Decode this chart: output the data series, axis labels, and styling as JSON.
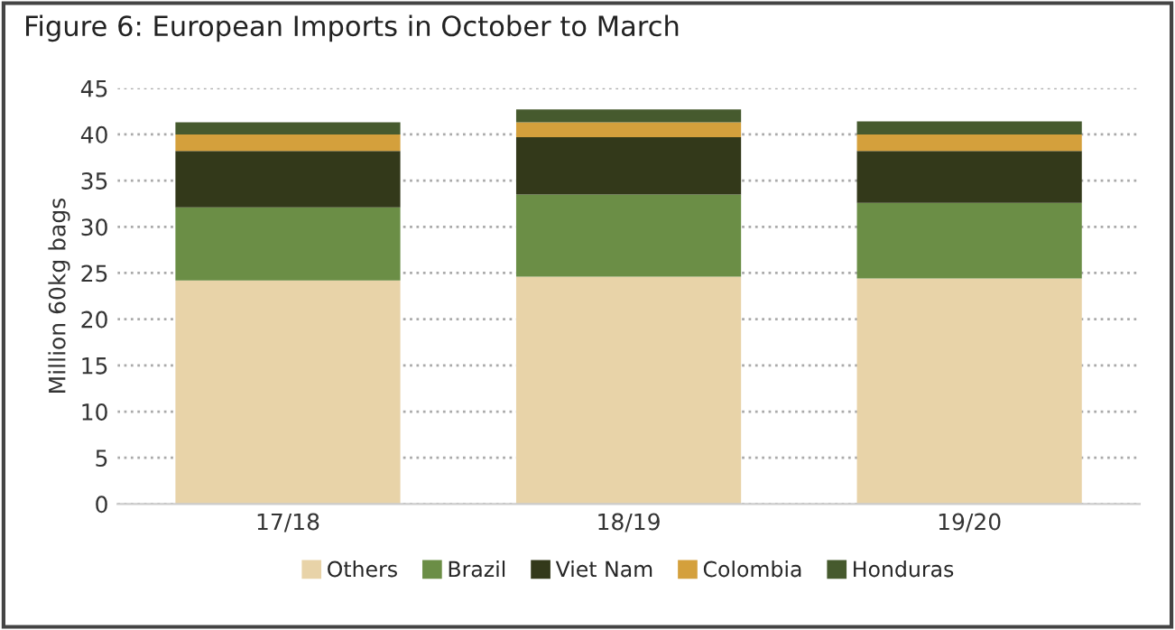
{
  "chart_data": {
    "type": "bar",
    "title": "Figure 6: European Imports in October to March",
    "ylabel": "Million 60kg bags",
    "categories": [
      "17/18",
      "18/19",
      "19/20"
    ],
    "stacked": true,
    "series": [
      {
        "name": "Others",
        "color": "#e8d3a8",
        "values": [
          24.2,
          24.6,
          24.4
        ]
      },
      {
        "name": "Brazil",
        "color": "#6b8e46",
        "values": [
          7.9,
          8.9,
          8.2
        ]
      },
      {
        "name": "Viet Nam",
        "color": "#33391a",
        "values": [
          6.1,
          6.2,
          5.6
        ]
      },
      {
        "name": "Colombia",
        "color": "#d4a03c",
        "values": [
          1.8,
          1.6,
          1.8
        ]
      },
      {
        "name": "Honduras",
        "color": "#465a2e",
        "values": [
          1.3,
          1.4,
          1.4
        ]
      }
    ],
    "ylim": [
      0,
      45
    ],
    "yticks": [
      0,
      5,
      10,
      15,
      20,
      25,
      30,
      35,
      40,
      45
    ],
    "grid": "y",
    "legend": "bottom"
  }
}
